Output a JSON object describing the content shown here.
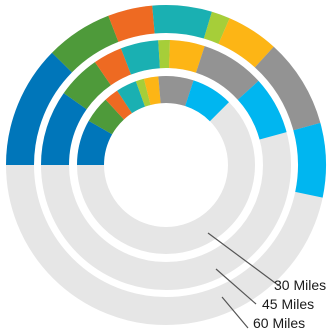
{
  "chart_data": {
    "type": "radial-bar (concentric rings)",
    "title": "",
    "rings": [
      {
        "name": "30 Miles",
        "segments": [
          {
            "value": 11,
            "color": "#0076BA"
          },
          {
            "value": 6.5,
            "color": "#4E9A3A"
          },
          {
            "value": 3.5,
            "color": "#EE6A22"
          },
          {
            "value": 5,
            "color": "#1AB0B2"
          },
          {
            "value": 2,
            "color": "#A6CE39"
          },
          {
            "value": 3.5,
            "color": "#FDB515"
          },
          {
            "value": 8.5,
            "color": "#939393"
          },
          {
            "value": 10,
            "color": "#00B6F0"
          }
        ]
      },
      {
        "name": "45 Miles",
        "segments": [
          {
            "value": 13,
            "color": "#0076BA"
          },
          {
            "value": 7.5,
            "color": "#4E9A3A"
          },
          {
            "value": 5,
            "color": "#EE6A22"
          },
          {
            "value": 6.5,
            "color": "#1AB0B2"
          },
          {
            "value": 2,
            "color": "#A6CE39"
          },
          {
            "value": 6,
            "color": "#FDB515"
          },
          {
            "value": 11,
            "color": "#939393"
          },
          {
            "value": 10,
            "color": "#00B6F0"
          }
        ]
      },
      {
        "name": "60 Miles",
        "segments": [
          {
            "value": 16.5,
            "color": "#0076BA"
          },
          {
            "value": 9,
            "color": "#4E9A3A"
          },
          {
            "value": 6,
            "color": "#EE6A22"
          },
          {
            "value": 8,
            "color": "#1AB0B2"
          },
          {
            "value": 2.5,
            "color": "#A6CE39"
          },
          {
            "value": 7,
            "color": "#FDB515"
          },
          {
            "value": 12,
            "color": "#939393"
          },
          {
            "value": 10,
            "color": "#00B6F0"
          }
        ]
      }
    ],
    "max_value": 133.3,
    "track_color": "#E6E6E6",
    "labels": [
      "30 Miles",
      "45 Miles",
      "60 Miles"
    ]
  }
}
